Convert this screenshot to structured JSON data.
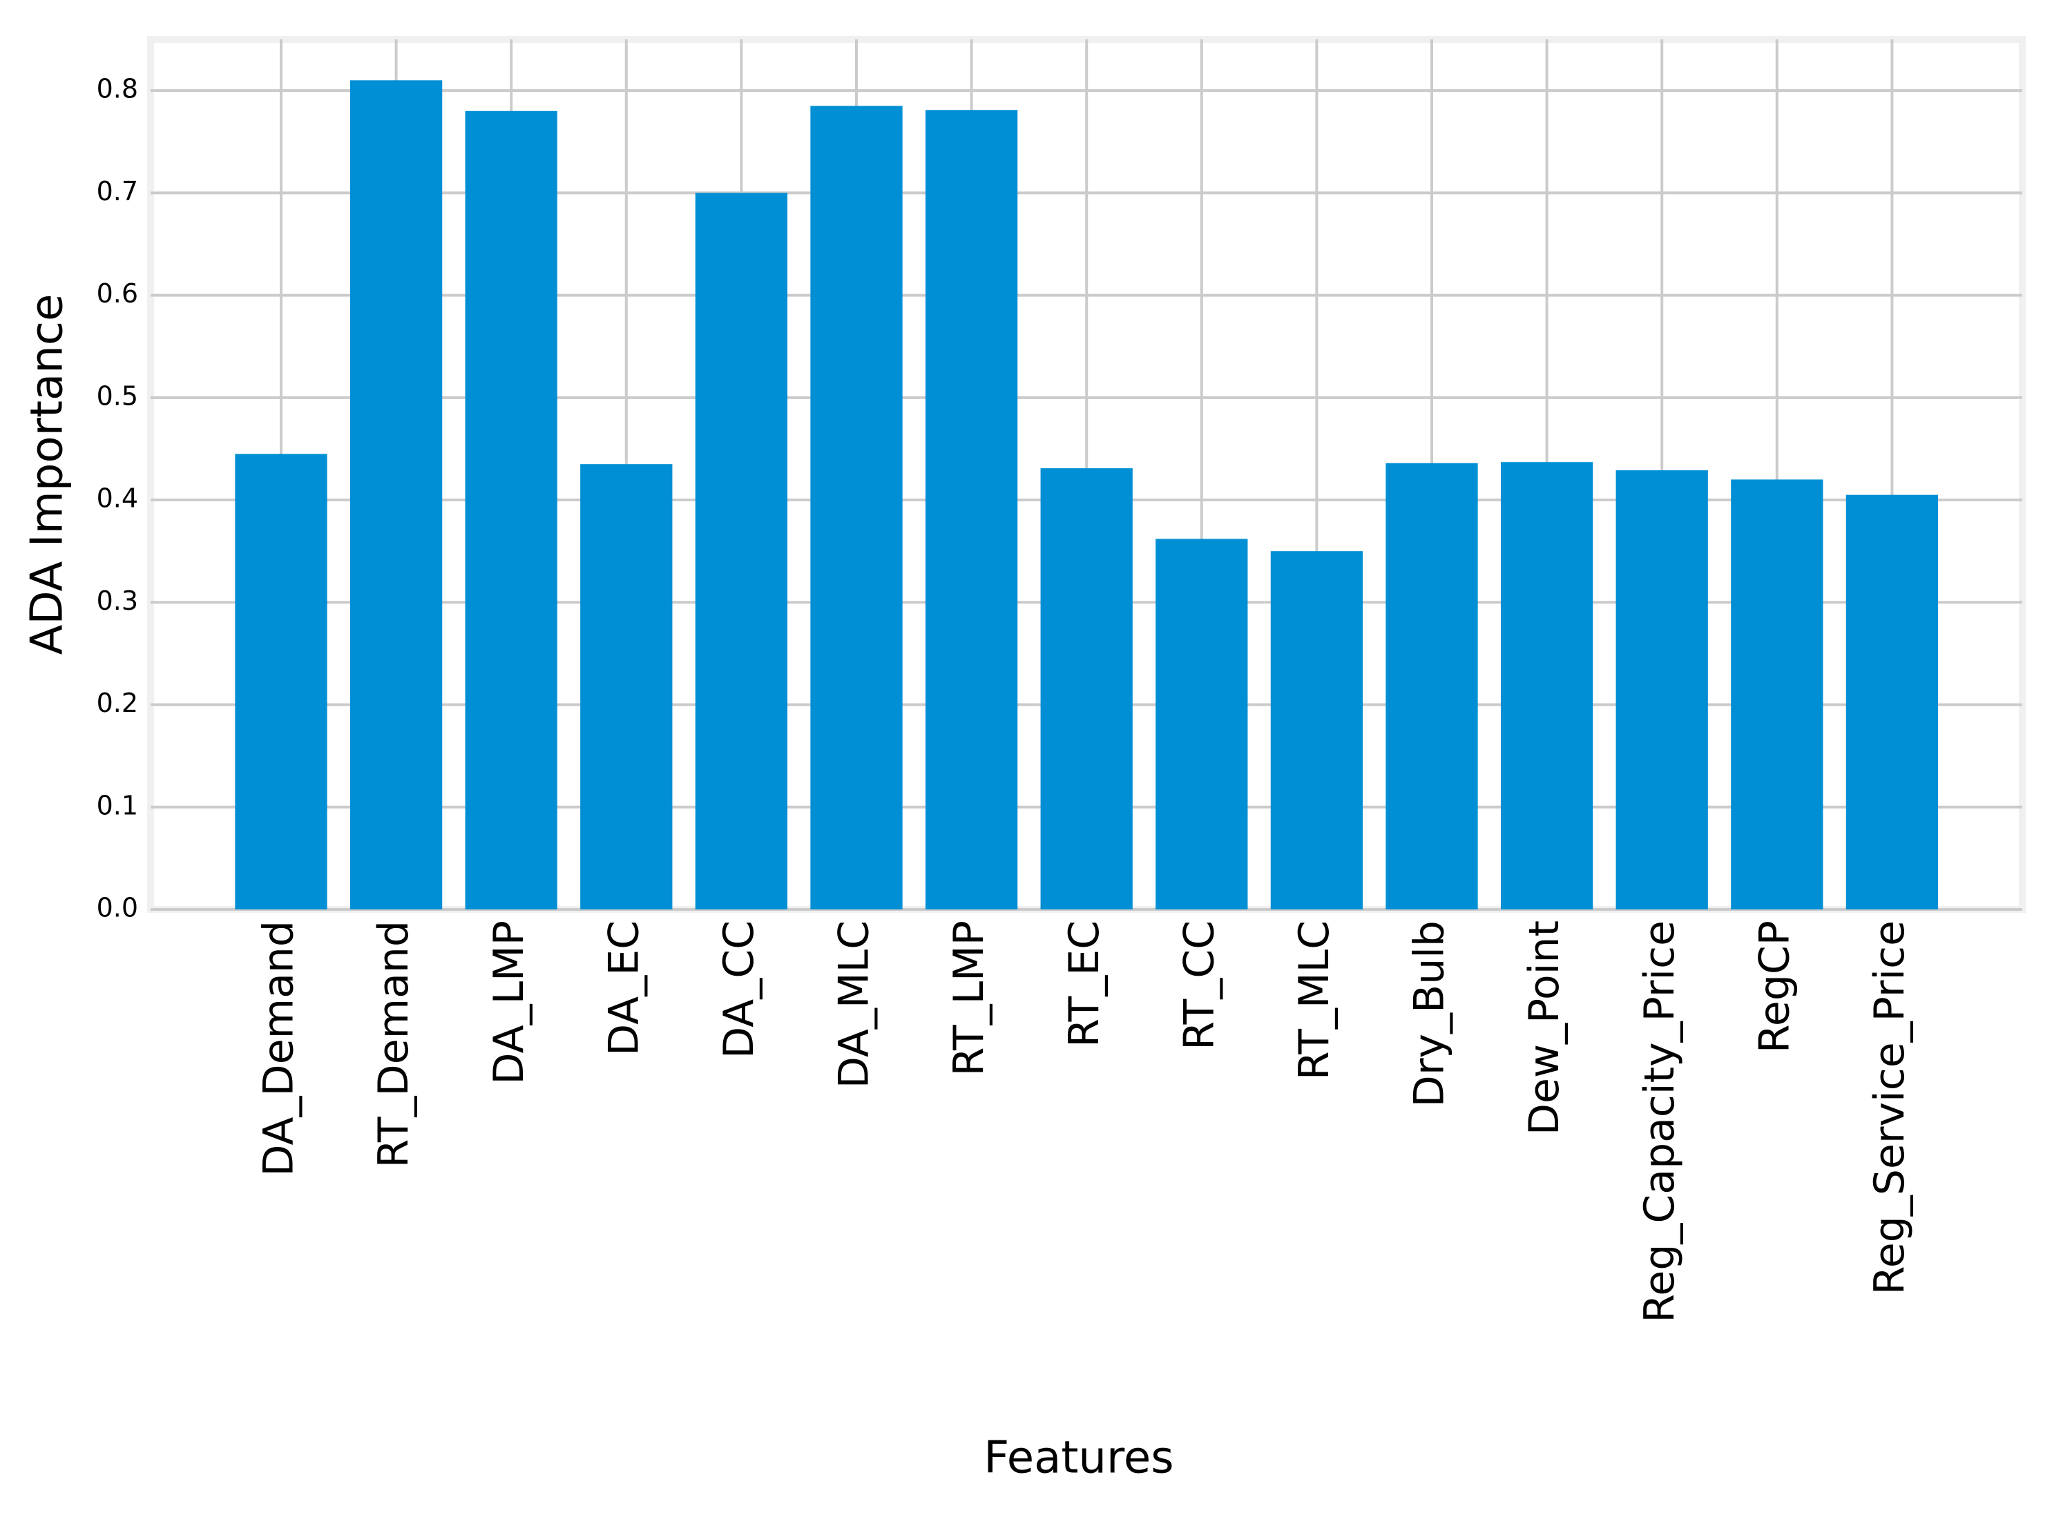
{
  "chart_data": {
    "type": "bar",
    "x_label": "Features",
    "y_label": "ADA Importance",
    "categories": [
      "DA_Demand",
      "RT_Demand",
      "DA_LMP",
      "DA_EC",
      "DA_CC",
      "DA_MLC",
      "RT_LMP",
      "RT_EC",
      "RT_CC",
      "RT_MLC",
      "Dry_Bulb",
      "Dew_Point",
      "Reg_Capacity_Price",
      "RegCP",
      "Reg_Service_Price"
    ],
    "values": [
      0.445,
      0.81,
      0.78,
      0.435,
      0.7,
      0.785,
      0.781,
      0.431,
      0.362,
      0.35,
      0.436,
      0.437,
      0.429,
      0.42,
      0.405
    ],
    "color": "#008fd5",
    "ylim": [
      0,
      0.85
    ],
    "yticks": [
      {
        "value": 0,
        "label": "0.0"
      },
      0.1,
      0.2,
      0.3,
      0.4,
      0.5,
      0.6,
      0.7,
      0.8
    ],
    "grid": true
  }
}
